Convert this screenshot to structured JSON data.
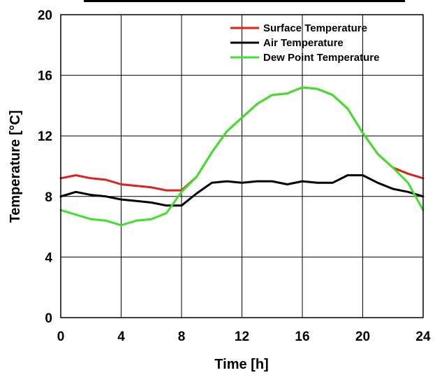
{
  "chart_data": {
    "type": "line",
    "xlabel": "Time [h]",
    "ylabel": "Temperature [°C]",
    "xlim": [
      0,
      24
    ],
    "ylim": [
      0,
      20
    ],
    "xticks": [
      "0",
      "4",
      "8",
      "12",
      "16",
      "20",
      "24"
    ],
    "yticks": [
      "0",
      "4",
      "8",
      "12",
      "16",
      "20"
    ],
    "grid": true,
    "legend_position": "top-right",
    "x": [
      0,
      1,
      2,
      3,
      4,
      5,
      6,
      7,
      8,
      9,
      10,
      11,
      12,
      13,
      14,
      15,
      16,
      17,
      18,
      19,
      20,
      21,
      22,
      23,
      24
    ],
    "series": [
      {
        "name": "Surface Temperature",
        "color": "#e0201b",
        "values": [
          9.2,
          9.4,
          9.2,
          9.1,
          8.8,
          8.7,
          8.6,
          8.4,
          8.4,
          9.3,
          10.9,
          12.3,
          13.2,
          14.1,
          14.7,
          14.8,
          15.2,
          15.1,
          14.7,
          13.8,
          12.2,
          10.8,
          9.9,
          9.5,
          9.2
        ]
      },
      {
        "name": "Air Temperature",
        "color": "#000000",
        "values": [
          8.0,
          8.3,
          8.1,
          8.0,
          7.8,
          7.7,
          7.6,
          7.4,
          7.4,
          8.2,
          8.9,
          9.0,
          8.9,
          9.0,
          9.0,
          8.8,
          9.0,
          8.9,
          8.9,
          9.4,
          9.4,
          8.9,
          8.5,
          8.3,
          8.0
        ]
      },
      {
        "name": "Dew Point Temperature",
        "color": "#3ee22c",
        "values": [
          7.1,
          6.8,
          6.5,
          6.4,
          6.1,
          6.4,
          6.5,
          6.9,
          8.3,
          9.3,
          10.9,
          12.3,
          13.2,
          14.1,
          14.7,
          14.8,
          15.2,
          15.1,
          14.7,
          13.8,
          12.2,
          10.8,
          9.9,
          8.9,
          7.1
        ]
      }
    ]
  }
}
